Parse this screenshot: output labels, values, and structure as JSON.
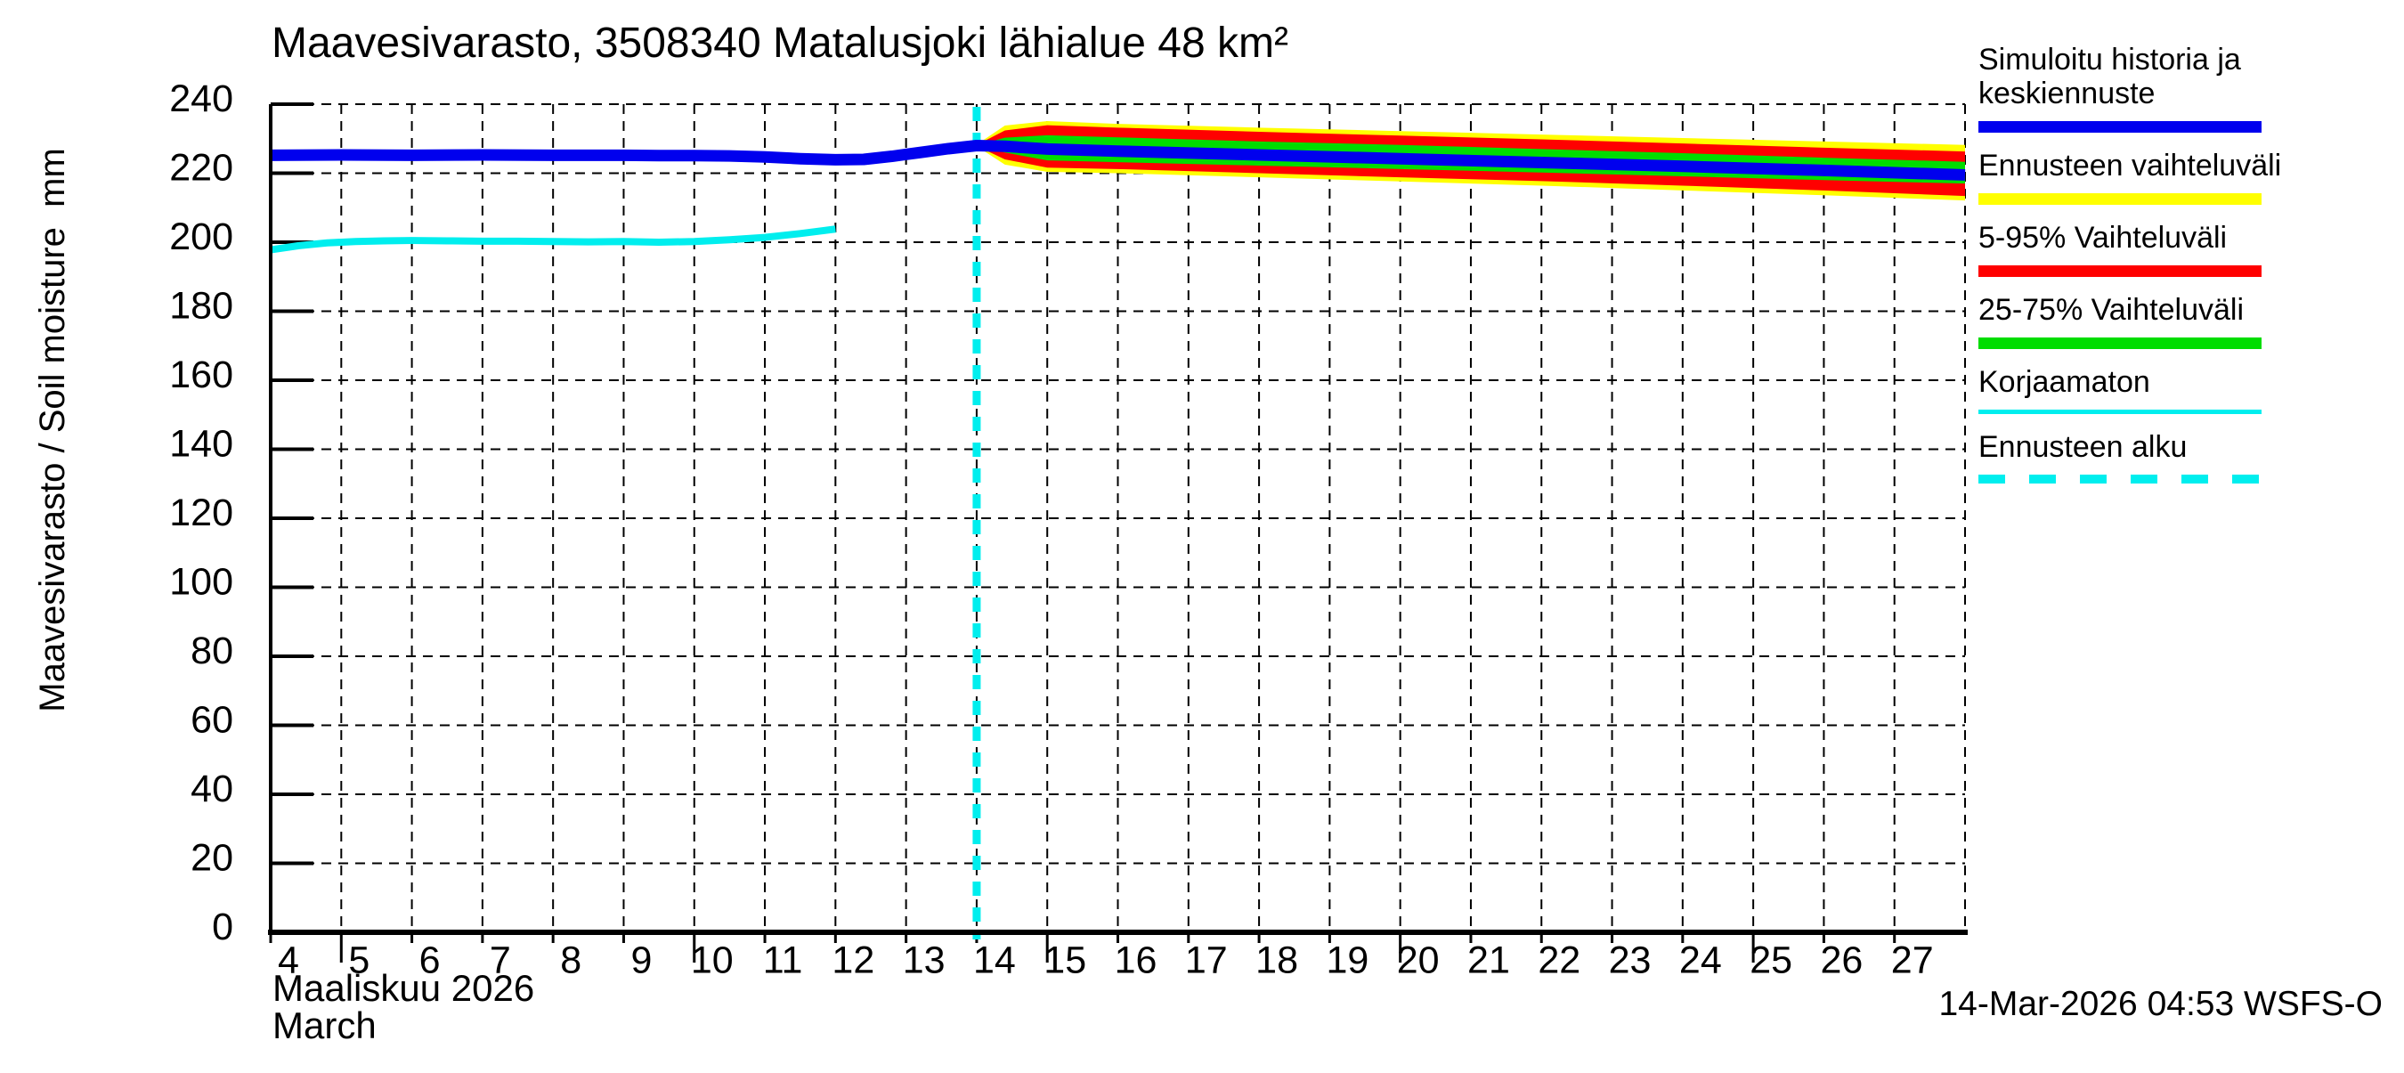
{
  "title": "Maavesivarasto, 3508340 Matalusjoki lähialue 48 km²",
  "y_axis": {
    "label": "Maavesivarasto / Soil moisture  mm",
    "ticks": [
      0,
      20,
      40,
      60,
      80,
      100,
      120,
      140,
      160,
      180,
      200,
      220,
      240
    ]
  },
  "x_axis": {
    "month_fi": "Maaliskuu 2026",
    "month_en": "March",
    "day_ticks": [
      4,
      5,
      6,
      7,
      8,
      9,
      10,
      11,
      12,
      13,
      14,
      15,
      16,
      17,
      18,
      19,
      20,
      21,
      22,
      23,
      24,
      25,
      26,
      27
    ]
  },
  "footer": {
    "timestamp": "14-Mar-2026 04:53 WSFS-O"
  },
  "colors": {
    "median_blue": "#0000ee",
    "range_yellow": "#ffff00",
    "band_red": "#ff0000",
    "band_green": "#00dd00",
    "uncorrected_cyan": "#00eeee",
    "grid_black": "#000000"
  },
  "legend": [
    {
      "label": "Simuloitu historia ja keskiennuste",
      "lines": [
        "Simuloitu historia ja",
        "keskiennuste"
      ],
      "color": "#0000ee",
      "style": "thick"
    },
    {
      "label": "Ennusteen vaihteluväli",
      "lines": [
        "Ennusteen vaihteluväli"
      ],
      "color": "#ffff00",
      "style": "thick"
    },
    {
      "label": "5-95% Vaihteluväli",
      "lines": [
        "5-95% Vaihteluväli"
      ],
      "color": "#ff0000",
      "style": "thick"
    },
    {
      "label": "25-75% Vaihteluväli",
      "lines": [
        "25-75% Vaihteluväli"
      ],
      "color": "#00dd00",
      "style": "thick"
    },
    {
      "label": "Korjaamaton",
      "lines": [
        "Korjaamaton"
      ],
      "color": "#00eeee",
      "style": "thin"
    },
    {
      "label": "Ennusteen alku",
      "lines": [
        "Ennusteen alku"
      ],
      "color": "#00eeee",
      "style": "dashed"
    }
  ],
  "chart_data": {
    "type": "line",
    "title": "Maavesivarasto, 3508340 Matalusjoki lähialue 48 km²",
    "xlabel": "Maaliskuu 2026 / March",
    "ylabel": "Maavesivarasto / Soil moisture mm",
    "x_domain": [
      4,
      28
    ],
    "y_domain": [
      0,
      240
    ],
    "grid": true,
    "legend_position": "right",
    "forecast_start_day": 14,
    "series": {
      "simulated_history_and_median": {
        "name": "Simuloitu historia ja keskiennuste",
        "color": "#0000ee",
        "points": [
          [
            4,
            225.2
          ],
          [
            5,
            225.3
          ],
          [
            6,
            225.2
          ],
          [
            7,
            225.3
          ],
          [
            8,
            225.2
          ],
          [
            9,
            225.2
          ],
          [
            9.5,
            225.1
          ],
          [
            10,
            225.1
          ],
          [
            10.5,
            225.0
          ],
          [
            11,
            224.7
          ],
          [
            11.5,
            224.2
          ],
          [
            12,
            223.9
          ],
          [
            12.4,
            224.0
          ],
          [
            12.8,
            224.9
          ],
          [
            13.2,
            226.0
          ],
          [
            13.6,
            227.1
          ],
          [
            14,
            228.0
          ]
        ]
      },
      "korjaamaton": {
        "name": "Korjaamaton",
        "color": "#00eeee",
        "points": [
          [
            4,
            197.8
          ],
          [
            4.4,
            199.0
          ],
          [
            4.8,
            199.8
          ],
          [
            5.2,
            200.2
          ],
          [
            5.6,
            200.4
          ],
          [
            6,
            200.5
          ],
          [
            6.5,
            200.4
          ],
          [
            7,
            200.3
          ],
          [
            7.5,
            200.3
          ],
          [
            8,
            200.2
          ],
          [
            8.5,
            200.1
          ],
          [
            9,
            200.2
          ],
          [
            9.5,
            200.0
          ],
          [
            10,
            200.2
          ],
          [
            10.5,
            200.7
          ],
          [
            11,
            201.4
          ],
          [
            11.5,
            202.5
          ],
          [
            12,
            203.8
          ]
        ]
      },
      "forecast_bands": {
        "days": [
          14,
          14.4,
          15,
          16,
          18,
          20,
          22,
          24,
          26,
          28
        ],
        "min": [
          227.8,
          222.5,
          220.4,
          220.0,
          218.8,
          217.6,
          216.4,
          215.0,
          213.6,
          212.1
        ],
        "p5": [
          227.9,
          224.0,
          221.6,
          221.2,
          220.0,
          218.8,
          217.7,
          216.4,
          215.0,
          213.4
        ],
        "p25": [
          228.0,
          226.0,
          223.7,
          223.2,
          222.2,
          221.2,
          220.2,
          219.1,
          218.0,
          217.0
        ],
        "median": [
          228.0,
          227.8,
          227.0,
          226.4,
          225.3,
          224.2,
          223.1,
          222.0,
          220.8,
          219.5
        ],
        "p75": [
          228.1,
          230.3,
          231.0,
          230.4,
          229.2,
          228.2,
          227.0,
          225.8,
          224.5,
          223.3
        ],
        "p95": [
          228.2,
          232.4,
          233.9,
          233.2,
          232.0,
          230.9,
          229.8,
          228.6,
          227.4,
          226.3
        ],
        "max": [
          228.3,
          233.8,
          235.1,
          234.3,
          233.2,
          232.2,
          231.2,
          230.2,
          229.2,
          228.2
        ]
      }
    }
  }
}
